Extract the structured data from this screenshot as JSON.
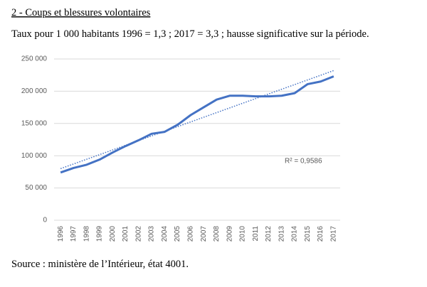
{
  "chart_data": {
    "type": "line",
    "title": "2 - Coups et blessures volontaires",
    "subtitle": "Taux pour 1 000 habitants 1996 = 1,3 ; 2017 = 3,3 ; hausse significative sur la période.",
    "source": "Source : ministère de l’Intérieur, état 4001.",
    "categories": [
      "1996",
      "1997",
      "1998",
      "1999",
      "2000",
      "2001",
      "2002",
      "2003",
      "2004",
      "2005",
      "2006",
      "2007",
      "2008",
      "2009",
      "2010",
      "2011",
      "2012",
      "2013",
      "2014",
      "2015",
      "2016",
      "2017"
    ],
    "series": [
      {
        "color": "#4472c4",
        "values": [
          74000,
          81000,
          86000,
          94000,
          105000,
          115000,
          124000,
          134000,
          137000,
          148000,
          163000,
          175000,
          187000,
          193000,
          193000,
          192000,
          192000,
          193000,
          197000,
          211000,
          215000,
          223000
        ]
      }
    ],
    "trendline": {
      "values": [
        80000,
        232000
      ],
      "color": "#4472c4",
      "annotation": "R² = 0,9586"
    },
    "ylim": [
      0,
      250000
    ],
    "yticks": [
      0,
      {
        "value": 50000,
        "label": "50 000"
      },
      {
        "value": 100000,
        "label": "100 000"
      },
      {
        "value": 150000,
        "label": "150 000"
      },
      {
        "value": 200000,
        "label": "200 000"
      },
      {
        "value": 250000,
        "label": "250 000"
      }
    ],
    "grid": true
  }
}
